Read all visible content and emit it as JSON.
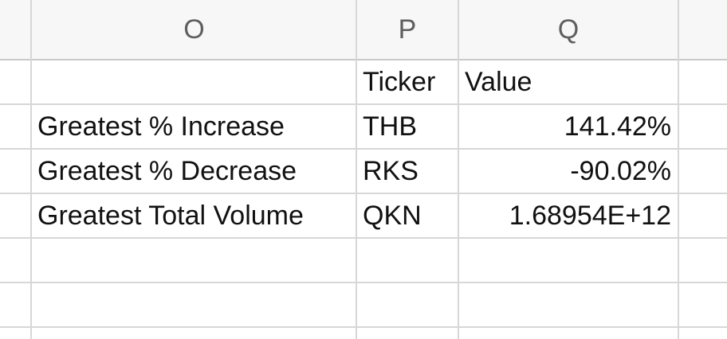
{
  "columns": {
    "o": "O",
    "p": "P",
    "q": "Q"
  },
  "rows": [
    {
      "o": "",
      "p": "Ticker",
      "q": "Value"
    },
    {
      "o": "Greatest % Increase",
      "p": "THB",
      "q": "141.42%"
    },
    {
      "o": "Greatest %  Decrease",
      "p": "RKS",
      "q": "-90.02%"
    },
    {
      "o": "Greatest Total Volume",
      "p": "QKN",
      "q": "1.68954E+12"
    },
    {
      "o": "",
      "p": "",
      "q": ""
    },
    {
      "o": "",
      "p": "",
      "q": ""
    }
  ]
}
